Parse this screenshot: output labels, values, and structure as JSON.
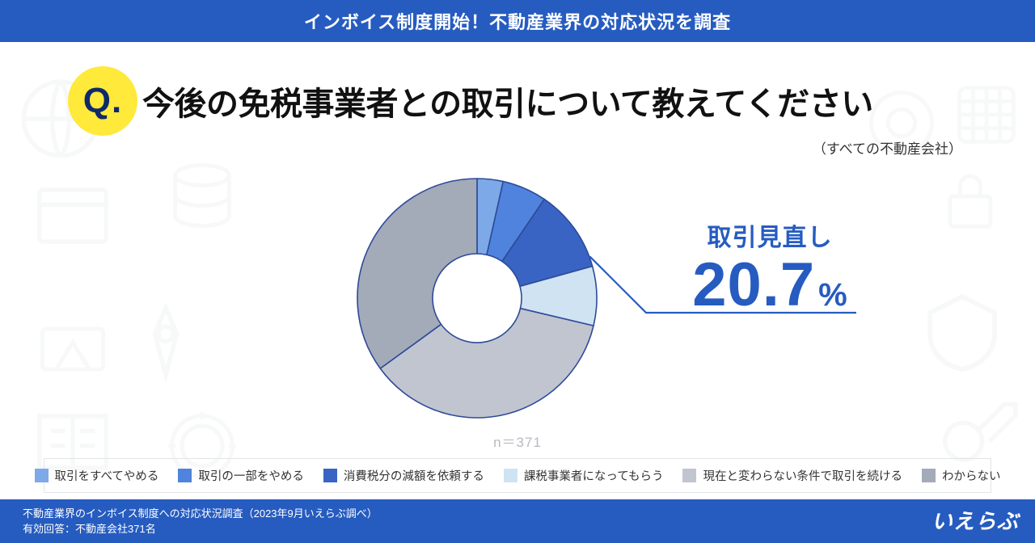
{
  "header": {
    "title": "インボイス制度開始！不動産業界の対応状況を調査"
  },
  "question": {
    "badge": "Q.",
    "text": "今後の免税事業者との取引について教えてください",
    "subtitle": "（すべての不動産会社）"
  },
  "chart": {
    "type": "donut",
    "n_label": "n＝371",
    "stroke_color": "#2e4a99",
    "stroke_width": 1.6,
    "inner_radius": 55,
    "outer_radius": 148,
    "bg_color": "#ffffff",
    "segments": [
      {
        "label": "取引をすべてやめる",
        "value": 3.5,
        "color": "#7ea9e8"
      },
      {
        "label": "取引の一部をやめる",
        "value": 6.0,
        "color": "#4f83dd"
      },
      {
        "label": "消費税分の減額を依頼する",
        "value": 11.2,
        "color": "#3964c3"
      },
      {
        "label": "課税事業者になってもらう",
        "value": 8.0,
        "color": "#cfe3f2"
      },
      {
        "label": "現在と変わらない条件で取引を続ける",
        "value": 36.3,
        "color": "#c0c5cf"
      },
      {
        "label": "わからない",
        "value": 35.0,
        "color": "#a3aab8"
      }
    ],
    "callout": {
      "label": "取引見直し",
      "value": "20.7",
      "unit": "%",
      "color": "#265cc0",
      "label_fontsize": 30,
      "value_fontsize": 76
    }
  },
  "legend": {
    "border_color": "#e2e4e8",
    "fontsize": 14.5
  },
  "footer": {
    "line1": "不動産業界のインボイス制度への対応状況調査（2023年9月いえらぶ調べ）",
    "line2": "有効回答：不動産会社371名",
    "logo": "いえらぶ"
  },
  "colors": {
    "brand": "#265cc0",
    "header_bg": "#265cc0",
    "q_badge_bg": "#ffe93a",
    "q_badge_fg": "#0f2a6b"
  }
}
